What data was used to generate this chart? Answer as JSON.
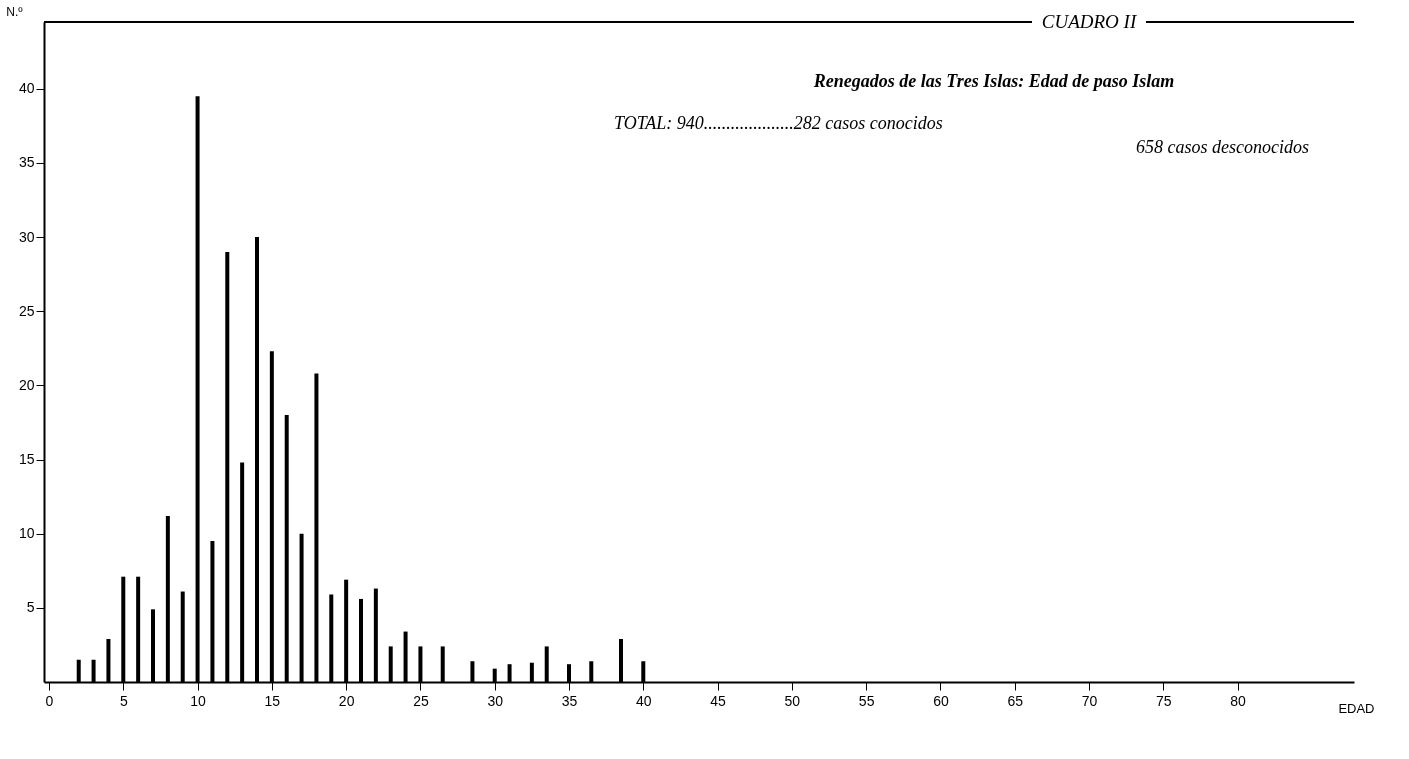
{
  "chart_data": {
    "type": "bar",
    "title": "CUADRO II",
    "subtitle": "Renegados de las Tres Islas: Edad de paso Islam",
    "annotations": [
      "TOTAL: 940....................282 casos conocidos",
      "658 casos desconocidos"
    ],
    "xlabel": "EDAD",
    "ylabel": "N.º",
    "x": [
      2,
      3,
      4,
      5,
      6,
      7,
      8,
      9,
      10,
      11,
      12,
      13,
      14,
      15,
      16,
      17,
      18,
      19,
      20,
      21,
      22,
      23,
      24,
      25,
      26.5,
      28.5,
      30,
      31,
      32.5,
      33.5,
      35,
      36.5,
      38.5,
      40
    ],
    "values": [
      1.5,
      1.5,
      2.9,
      7.1,
      7.1,
      4.9,
      11.2,
      6.1,
      39.5,
      9.5,
      29,
      14.8,
      30,
      22.3,
      18,
      10,
      20.8,
      5.9,
      6.9,
      5.6,
      6.3,
      2.4,
      3.4,
      2.4,
      2.4,
      1.4,
      0.9,
      1.2,
      1.3,
      2.4,
      1.2,
      1.4,
      2.9,
      1.4
    ],
    "color": "#000000",
    "xlim": [
      0,
      87.5
    ],
    "ylim": [
      0,
      44.5
    ],
    "xticks": [
      0,
      5,
      10,
      15,
      20,
      25,
      30,
      35,
      40,
      45,
      50,
      55,
      60,
      65,
      70,
      75,
      80
    ],
    "yticks": [
      5,
      10,
      15,
      20,
      25,
      30,
      35,
      40
    ],
    "grid": false
  }
}
